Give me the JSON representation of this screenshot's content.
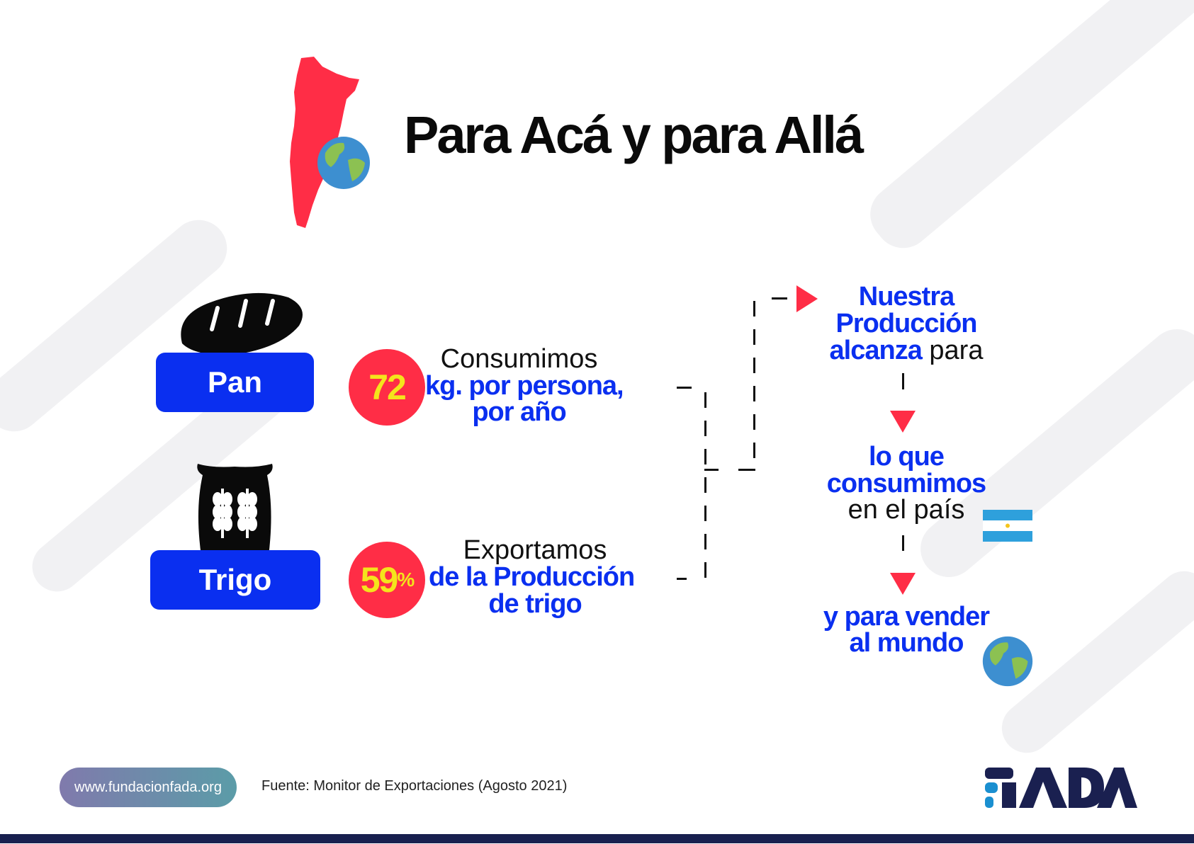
{
  "title": "Para Acá y para Allá",
  "left": {
    "pan_label": "Pan",
    "trigo_label": "Trigo"
  },
  "stats": [
    {
      "value": "72",
      "unit": "",
      "line1": "Consumimos",
      "line2": "kg. por persona,",
      "line3": "por año"
    },
    {
      "value": "59",
      "unit": "%",
      "line1": "Exportamos",
      "line2": "de la Producción",
      "line3": "de trigo"
    }
  ],
  "flow": {
    "step1_line1": "Nuestra",
    "step1_line2": "Producción",
    "step1_line3_bold": "alcanza",
    "step1_line3_normal": " para",
    "step2_line1": "lo que",
    "step2_line2": "consumimos",
    "step2_line3": "en el país",
    "step3_line1": "y para vender",
    "step3_line2": "al mundo"
  },
  "footer": {
    "website": "www.fundacionfada.org",
    "source": "Fuente: Monitor de Exportaciones (Agosto 2021)",
    "logo_text": "FADA"
  },
  "colors": {
    "accent_blue": "#0a2ff0",
    "accent_red": "#ff2d46",
    "highlight_yellow": "#f4e41c",
    "navy": "#18204f"
  },
  "icons": [
    "argentina-map-icon",
    "globe-icon",
    "bread-icon",
    "wheat-sack-icon",
    "argentina-flag-icon"
  ]
}
